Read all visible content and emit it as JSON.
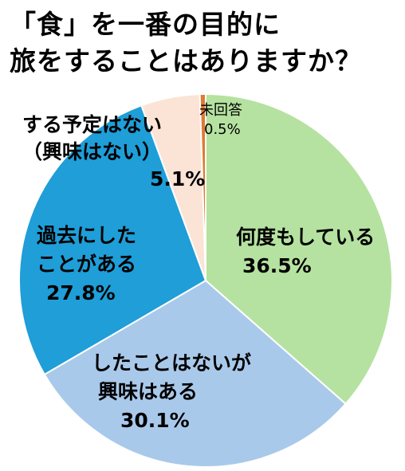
{
  "chart_data": {
    "type": "pie",
    "title_lines": [
      "「食」を一番の目的に",
      "旅をすることはありますか？"
    ],
    "slices": [
      {
        "label_lines": [
          "何度もしている"
        ],
        "value": 36.5,
        "display": "36.5%",
        "color": "#b5e2a0"
      },
      {
        "label_lines": [
          "したことはないが",
          "興味はある"
        ],
        "value": 30.1,
        "display": "30.1%",
        "color": "#a9c9ea"
      },
      {
        "label_lines": [
          "過去にした",
          "ことがある"
        ],
        "value": 27.8,
        "display": "27.8%",
        "color": "#1f9ed8"
      },
      {
        "label_lines": [
          "する予定はない",
          "（興味はない）"
        ],
        "value": 5.1,
        "display": "5.1%",
        "color": "#fbe3d6"
      },
      {
        "label_lines": [
          "未回答"
        ],
        "value": 0.5,
        "display": "0.5%",
        "color": "#e07a2f"
      }
    ]
  }
}
